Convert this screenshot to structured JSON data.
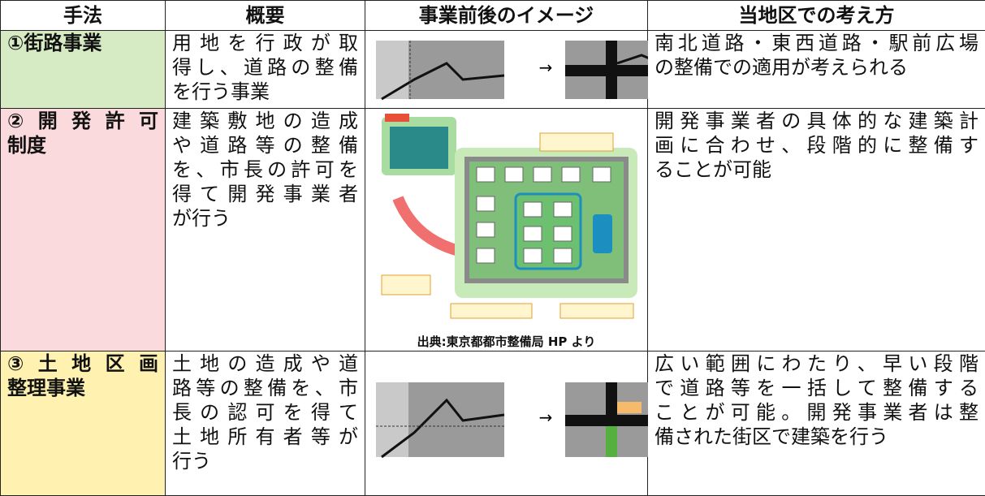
{
  "table": {
    "header": [
      "手法",
      "概要",
      "事業前後のイメージ",
      "当地区での考え方"
    ],
    "rows": [
      {
        "method": [
          "①街路事業"
        ],
        "summary": [
          "用地を行政が取",
          "得し、道路の整備",
          "を行う事業"
        ],
        "approach": [
          "南北道路・東西道路・駅前広場",
          "の整備での適用が考えられる"
        ]
      },
      {
        "method": [
          "②開発許可",
          "制度"
        ],
        "summary": [
          "建築敷地の造成",
          "や道路等の整備",
          "を、市長の許可を",
          "得て開発事業者",
          "が行う"
        ],
        "image_caption": "出典:東京都都市整備局 HP より",
        "approach": [
          "開発事業者の具体的な建築計",
          "画に合わせ、段階的に整備す",
          "ることが可能"
        ]
      },
      {
        "method": [
          "③土地区画",
          "整理事業"
        ],
        "summary": [
          "土地の造成や道",
          "路等の整備を、市",
          "長の認可を得て",
          "土地所有者等が",
          "行う"
        ],
        "approach": [
          "広い範囲にわたり、早い段階",
          "で道路等を一括して整備する",
          "ことが可能。開発事業者は整",
          "備された街区で建築を行う"
        ]
      }
    ]
  }
}
